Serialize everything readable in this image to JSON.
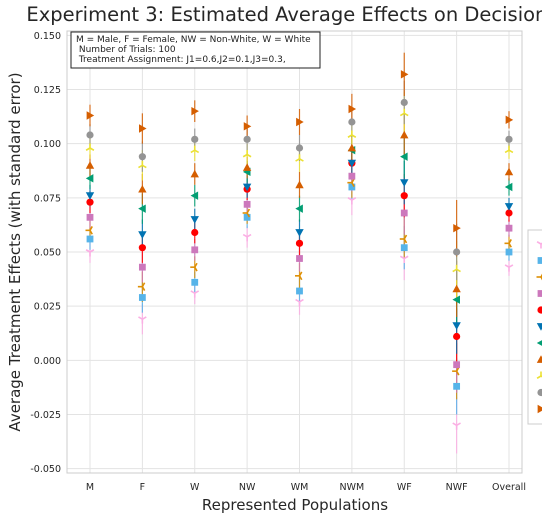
{
  "chart_data": {
    "type": "scatter",
    "title": "Experiment 3: Estimated Average Effects on Decisions",
    "xlabel": "Represented Populations",
    "ylabel": "Average Treatment Effects (with standard error)",
    "ylim": [
      -0.052,
      0.152
    ],
    "yticks": [
      -0.05,
      -0.025,
      0.0,
      0.025,
      0.05,
      0.075,
      0.1,
      0.125,
      0.15
    ],
    "ytick_labels": [
      "-0.050",
      "-0.025",
      "0.000",
      "0.025",
      "0.050",
      "0.075",
      "0.100",
      "0.125",
      "0.150"
    ],
    "categories": [
      "M",
      "F",
      "W",
      "NW",
      "WM",
      "NWM",
      "WF",
      "NWF",
      "Overall"
    ],
    "grid": true,
    "legend_position": "right, cropped",
    "annotation": [
      "M = Male, F = Female, NW = Non-White, W = White",
      " Number of Trials: 100",
      " Treatment Assignment: J1=0.6,J2=0.1,J3=0.3,"
    ],
    "series": [
      {
        "marker": "tri_down",
        "color": "#fbafe4",
        "values": [
          0.05,
          0.019,
          0.031,
          0.057,
          0.027,
          0.074,
          0.047,
          -0.03,
          0.043
        ],
        "errors": [
          0.005,
          0.007,
          0.005,
          0.005,
          0.006,
          0.007,
          0.01,
          0.013,
          0.004
        ]
      },
      {
        "marker": "square",
        "color": "#56b4e9",
        "values": [
          0.056,
          0.029,
          0.036,
          0.066,
          0.032,
          0.08,
          0.052,
          -0.012,
          0.05
        ],
        "errors": [
          0.005,
          0.007,
          0.005,
          0.005,
          0.006,
          0.007,
          0.01,
          0.013,
          0.004
        ]
      },
      {
        "marker": "tri_left",
        "color": "#de8f05",
        "values": [
          0.06,
          0.034,
          0.043,
          0.068,
          0.039,
          0.082,
          0.056,
          -0.005,
          0.054
        ],
        "errors": [
          0.005,
          0.007,
          0.005,
          0.005,
          0.006,
          0.007,
          0.01,
          0.013,
          0.004
        ]
      },
      {
        "marker": "square",
        "color": "#cc78bc",
        "values": [
          0.066,
          0.043,
          0.051,
          0.072,
          0.047,
          0.085,
          0.068,
          -0.002,
          0.061
        ],
        "errors": [
          0.005,
          0.007,
          0.005,
          0.005,
          0.006,
          0.007,
          0.01,
          0.013,
          0.004
        ]
      },
      {
        "marker": "circle",
        "color": "#ff0000",
        "values": [
          0.073,
          0.052,
          0.059,
          0.079,
          0.054,
          0.091,
          0.076,
          0.011,
          0.068
        ],
        "errors": [
          0.005,
          0.007,
          0.005,
          0.005,
          0.006,
          0.007,
          0.01,
          0.013,
          0.004
        ]
      },
      {
        "marker": "triangle_down",
        "color": "#0173b2",
        "values": [
          0.076,
          0.058,
          0.065,
          0.08,
          0.059,
          0.091,
          0.082,
          0.016,
          0.071
        ],
        "errors": [
          0.005,
          0.007,
          0.005,
          0.005,
          0.006,
          0.007,
          0.01,
          0.013,
          0.004
        ]
      },
      {
        "marker": "triangle_left",
        "color": "#029e73",
        "values": [
          0.084,
          0.07,
          0.076,
          0.087,
          0.07,
          0.097,
          0.094,
          0.028,
          0.08
        ],
        "errors": [
          0.005,
          0.007,
          0.005,
          0.005,
          0.006,
          0.007,
          0.01,
          0.013,
          0.004
        ]
      },
      {
        "marker": "triangle_up",
        "color": "#d55e00",
        "values": [
          0.09,
          0.079,
          0.086,
          0.089,
          0.081,
          0.098,
          0.104,
          0.033,
          0.087
        ],
        "errors": [
          0.005,
          0.007,
          0.005,
          0.005,
          0.006,
          0.007,
          0.01,
          0.013,
          0.004
        ]
      },
      {
        "marker": "tri_up",
        "color": "#ece133",
        "values": [
          0.098,
          0.09,
          0.097,
          0.095,
          0.093,
          0.104,
          0.114,
          0.042,
          0.097
        ],
        "errors": [
          0.005,
          0.007,
          0.005,
          0.005,
          0.006,
          0.007,
          0.01,
          0.013,
          0.004
        ]
      },
      {
        "marker": "circle",
        "color": "#949494",
        "values": [
          0.104,
          0.094,
          0.102,
          0.102,
          0.098,
          0.11,
          0.119,
          0.05,
          0.102
        ],
        "errors": [
          0.005,
          0.007,
          0.005,
          0.005,
          0.006,
          0.007,
          0.01,
          0.013,
          0.004
        ]
      },
      {
        "marker": "triangle_right",
        "color": "#d55e00",
        "values": [
          0.113,
          0.107,
          0.115,
          0.108,
          0.11,
          0.116,
          0.132,
          0.061,
          0.111
        ],
        "errors": [
          0.005,
          0.007,
          0.005,
          0.005,
          0.006,
          0.007,
          0.01,
          0.013,
          0.004
        ]
      }
    ],
    "legend_colors": [
      "#fbafe4",
      "#56b4e9",
      "#de8f05",
      "#cc78bc",
      "#ff0000",
      "#0173b2",
      "#029e73",
      "#d55e00",
      "#ece133",
      "#949494",
      "#d55e00"
    ]
  }
}
